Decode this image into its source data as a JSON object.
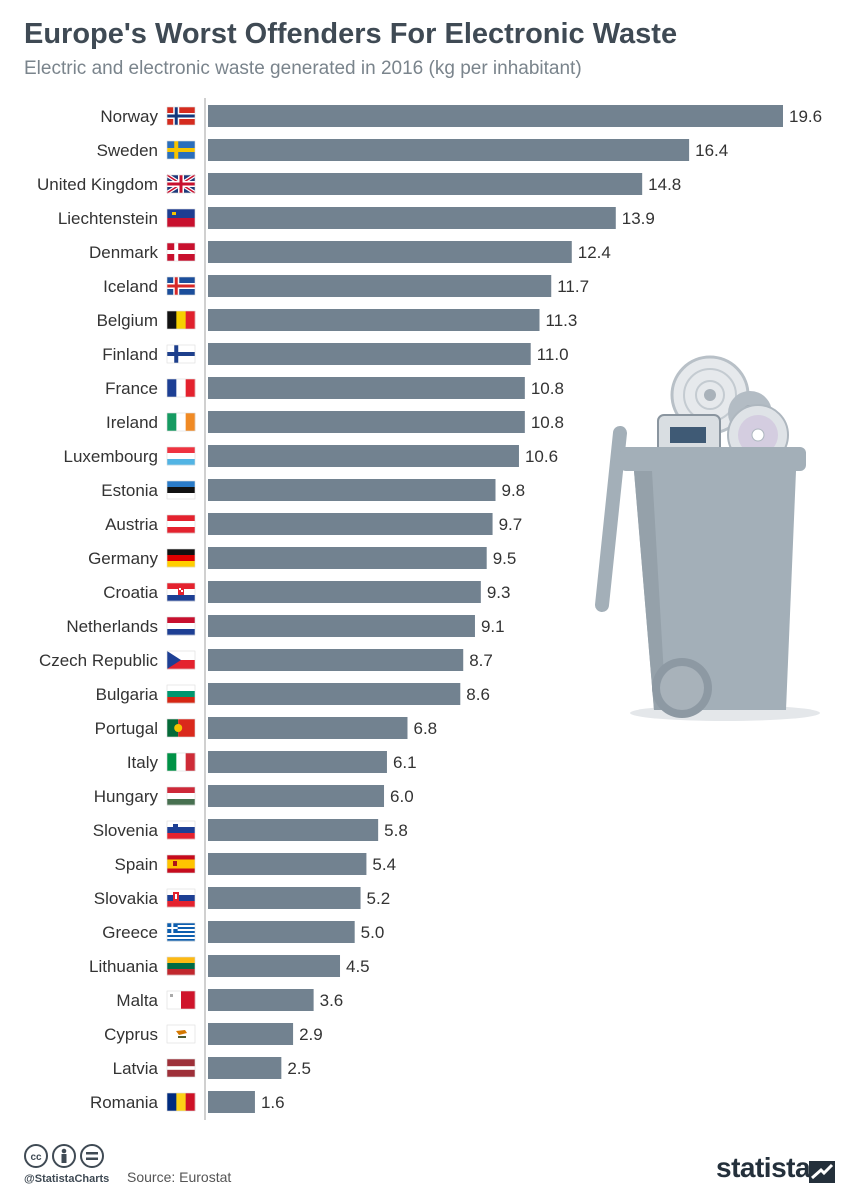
{
  "header": {
    "title": "Europe's Worst Offenders For Electronic Waste",
    "subtitle": "Electric and electronic waste generated in 2016 (kg per inhabitant)"
  },
  "colors": {
    "bar": "#728290",
    "title": "#3f4a54",
    "subtitle": "#7a848c",
    "label": "#333333",
    "axis": "#d0d0d0"
  },
  "chart_data": {
    "type": "bar",
    "orientation": "horizontal",
    "categories": [
      "Norway",
      "Sweden",
      "United Kingdom",
      "Liechtenstein",
      "Denmark",
      "Iceland",
      "Belgium",
      "Finland",
      "France",
      "Ireland",
      "Luxembourg",
      "Estonia",
      "Austria",
      "Germany",
      "Croatia",
      "Netherlands",
      "Czech Republic",
      "Bulgaria",
      "Portugal",
      "Italy",
      "Hungary",
      "Slovenia",
      "Spain",
      "Slovakia",
      "Greece",
      "Lithuania",
      "Malta",
      "Cyprus",
      "Latvia",
      "Romania"
    ],
    "values": [
      19.6,
      16.4,
      14.8,
      13.9,
      12.4,
      11.7,
      11.3,
      11.0,
      10.8,
      10.8,
      10.6,
      9.8,
      9.7,
      9.5,
      9.3,
      9.1,
      8.7,
      8.6,
      6.8,
      6.1,
      6.0,
      5.8,
      5.4,
      5.2,
      5.0,
      4.5,
      3.6,
      2.9,
      2.5,
      1.6
    ],
    "value_labels": [
      "19.6",
      "16.4",
      "14.8",
      "13.9",
      "12.4",
      "11.7",
      "11.3",
      "11.0",
      "10.8",
      "10.8",
      "10.6",
      "9.8",
      "9.7",
      "9.5",
      "9.3",
      "9.1",
      "8.7",
      "8.6",
      "6.8",
      "6.1",
      "6.0",
      "5.8",
      "5.4",
      "5.2",
      "5.0",
      "4.5",
      "3.6",
      "2.9",
      "2.5",
      "1.6"
    ],
    "flags": [
      "norway-flag-icon",
      "sweden-flag-icon",
      "united-kingdom-flag-icon",
      "liechtenstein-flag-icon",
      "denmark-flag-icon",
      "iceland-flag-icon",
      "belgium-flag-icon",
      "finland-flag-icon",
      "france-flag-icon",
      "ireland-flag-icon",
      "luxembourg-flag-icon",
      "estonia-flag-icon",
      "austria-flag-icon",
      "germany-flag-icon",
      "croatia-flag-icon",
      "netherlands-flag-icon",
      "czech-republic-flag-icon",
      "bulgaria-flag-icon",
      "portugal-flag-icon",
      "italy-flag-icon",
      "hungary-flag-icon",
      "slovenia-flag-icon",
      "spain-flag-icon",
      "slovakia-flag-icon",
      "greece-flag-icon",
      "lithuania-flag-icon",
      "malta-flag-icon",
      "cyprus-flag-icon",
      "latvia-flag-icon",
      "romania-flag-icon"
    ],
    "xlim": [
      0,
      19.6
    ],
    "grid": false,
    "legend": "none"
  },
  "footer": {
    "handle": "@StatistaCharts",
    "source": "Source: Eurostat",
    "brand": "statista",
    "license_icons": [
      "cc-icon",
      "attribution-icon",
      "no-derivatives-icon"
    ]
  }
}
